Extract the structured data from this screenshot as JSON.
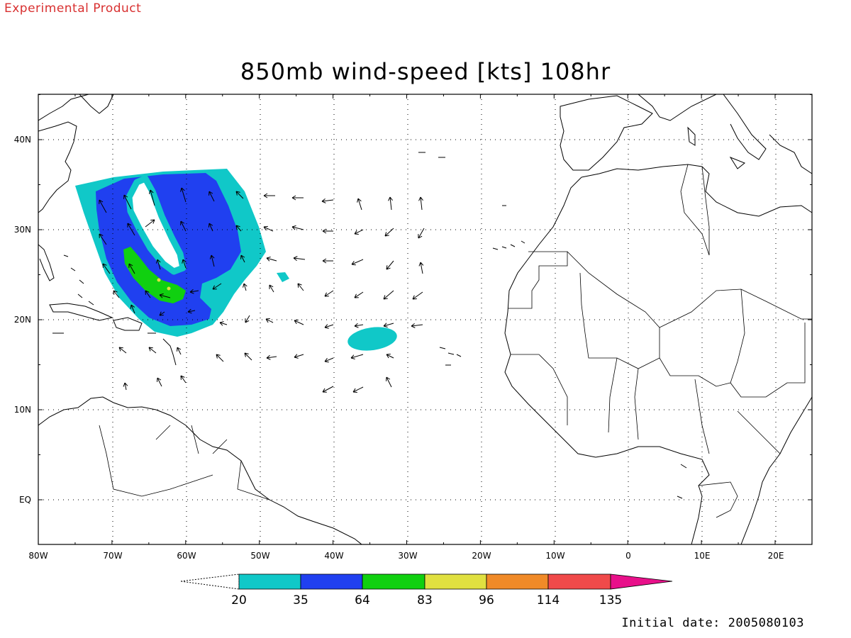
{
  "header": {
    "product_label": "Experimental Product",
    "title": "850mb wind-speed [kts] 108hr"
  },
  "footer": {
    "initial_date": "Initial date: 2005080103"
  },
  "map": {
    "lon_range": [
      -80,
      25
    ],
    "lat_range": [
      -5,
      45
    ],
    "lon_tick_labels": [
      "80W",
      "70W",
      "60W",
      "50W",
      "40W",
      "30W",
      "20W",
      "10W",
      "0",
      "10E",
      "20E"
    ],
    "lat_tick_labels": [
      "EQ",
      "10N",
      "20N",
      "30N",
      "40N"
    ],
    "gridlines": "dotted"
  },
  "colorbar": {
    "labels": [
      "20",
      "35",
      "64",
      "83",
      "96",
      "114",
      "135"
    ],
    "colors": [
      "#10c8c8",
      "#2040f0",
      "#10d010",
      "#e0e040",
      "#f08a28",
      "#f04a4a",
      "#e8108a"
    ]
  }
}
